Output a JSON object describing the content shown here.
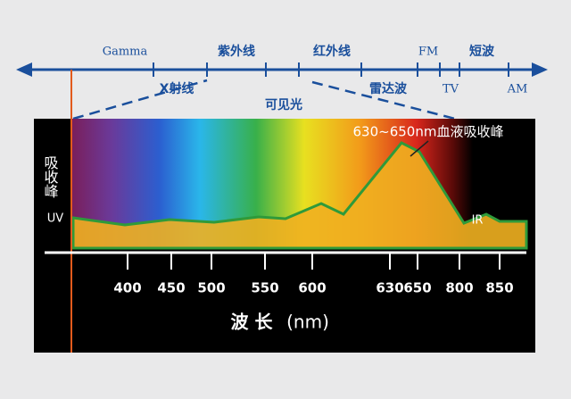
{
  "spectrum": {
    "above": [
      "Gamma",
      "紫外线",
      "红外线",
      "FM",
      "短波"
    ],
    "below": [
      "X射线",
      "雷达波",
      "TV",
      "AM"
    ],
    "visible": "可见光"
  },
  "panel": {
    "y_label": "吸收峰",
    "uv": "UV",
    "ir": "IR",
    "annotation": "630~650nm血液吸收峰"
  },
  "axis": {
    "ticks": [
      400,
      450,
      500,
      550,
      600,
      630,
      650,
      800,
      850
    ],
    "title": "波 长",
    "unit": "(nm)"
  }
}
